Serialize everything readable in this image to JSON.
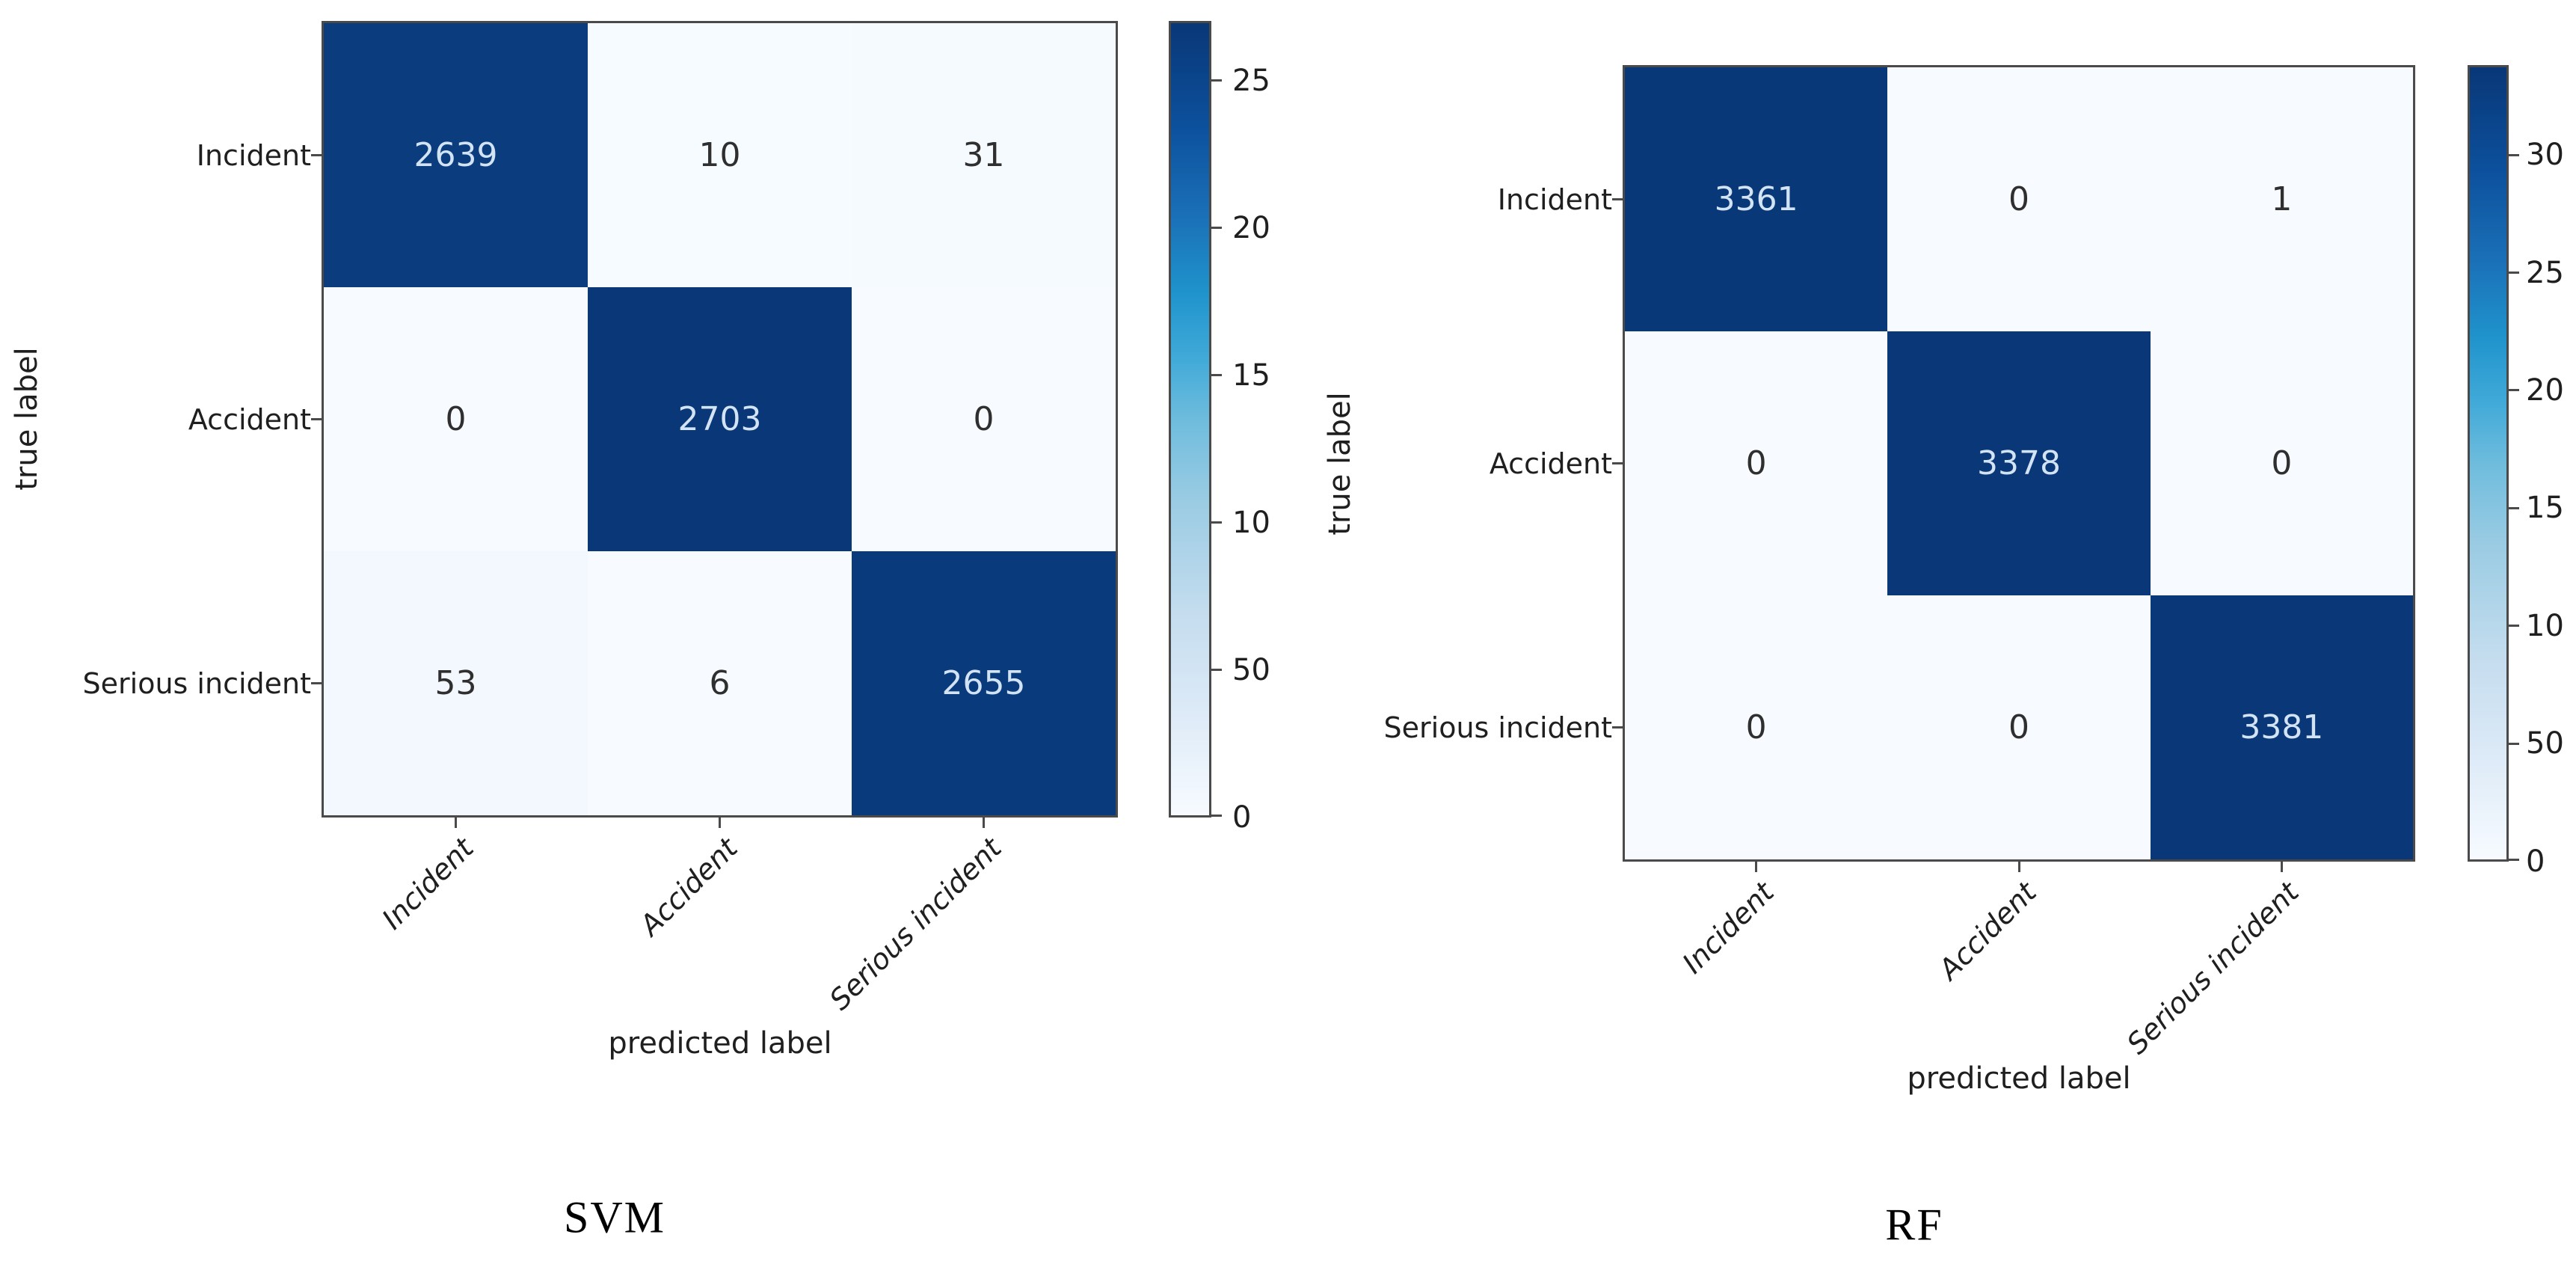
{
  "figure": {
    "background": "#ffffff",
    "description_visible_text_only": true
  },
  "colors": {
    "diagonal_dark": "#093777",
    "offdiagonal_light": "#f7fbff",
    "value_text_on_dark": "#d2e3f3",
    "value_text_on_light": "#2f2f2f",
    "axis_text": "#1f1f1f",
    "plot_border": "#4a4a4a"
  },
  "chart_data": [
    {
      "type": "heatmap",
      "title": "SVM",
      "xlabel": "predicted label",
      "ylabel": "true label",
      "x_categories": [
        "Incident",
        "Accident",
        "Serious incident"
      ],
      "y_categories": [
        "Incident",
        "Accident",
        "Serious incident"
      ],
      "matrix": [
        [
          2639,
          10,
          31
        ],
        [
          0,
          2703,
          0
        ],
        [
          53,
          6,
          2655
        ]
      ],
      "vmin": 0,
      "vmax": 2703,
      "colormap": "Blues",
      "grid": false,
      "colorbar": {
        "position": "right",
        "ticks": [
          {
            "label": "25",
            "pos": 0.075
          },
          {
            "label": "20",
            "pos": 0.26
          },
          {
            "label": "15",
            "pos": 0.445
          },
          {
            "label": "10",
            "pos": 0.63
          },
          {
            "label": "50",
            "pos": 0.815
          },
          {
            "label": "0",
            "pos": 1.0
          }
        ]
      }
    },
    {
      "type": "heatmap",
      "title": "RF",
      "xlabel": "predicted label",
      "ylabel": "true label",
      "x_categories": [
        "Incident",
        "Accident",
        "Serious incident"
      ],
      "y_categories": [
        "Incident",
        "Accident",
        "Serious incident"
      ],
      "matrix": [
        [
          3361,
          0,
          1
        ],
        [
          0,
          3378,
          0
        ],
        [
          0,
          0,
          3381
        ]
      ],
      "vmin": 0,
      "vmax": 3381,
      "colormap": "Blues",
      "grid": false,
      "colorbar": {
        "position": "right",
        "ticks": [
          {
            "label": "30",
            "pos": 0.113
          },
          {
            "label": "25",
            "pos": 0.261
          },
          {
            "label": "20",
            "pos": 0.408
          },
          {
            "label": "15",
            "pos": 0.556
          },
          {
            "label": "10",
            "pos": 0.704
          },
          {
            "label": "50",
            "pos": 0.852
          },
          {
            "label": "0",
            "pos": 1.0
          }
        ]
      }
    }
  ]
}
